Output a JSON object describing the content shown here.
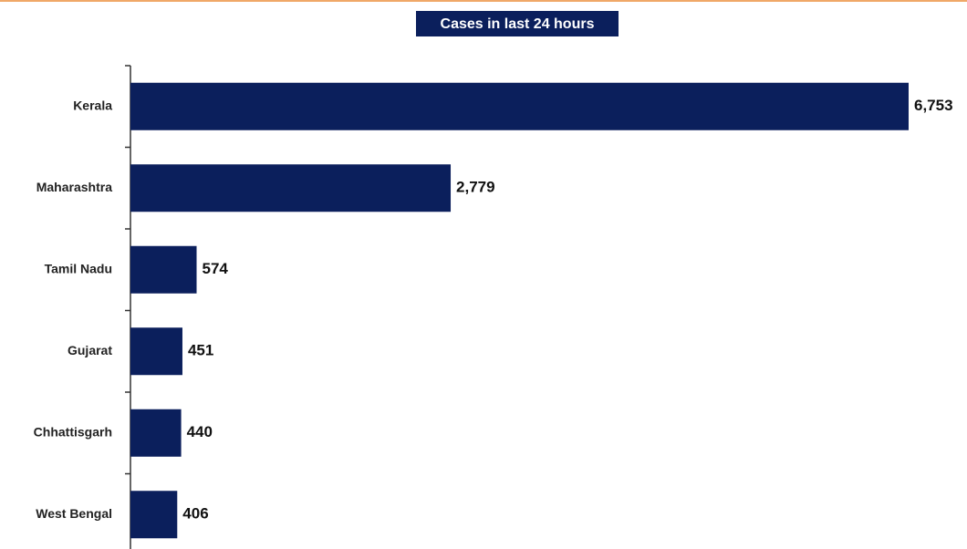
{
  "chart_data": {
    "type": "bar",
    "orientation": "horizontal",
    "title": "Cases in last 24 hours",
    "categories": [
      "Kerala",
      "Maharashtra",
      "Tamil Nadu",
      "Gujarat",
      "Chhattisgarh",
      "West Bengal"
    ],
    "values": [
      6753,
      2779,
      574,
      451,
      440,
      406
    ],
    "value_labels": [
      "6,753",
      "2,779",
      "574",
      "451",
      "440",
      "406"
    ],
    "color": "#0b1f5c"
  }
}
